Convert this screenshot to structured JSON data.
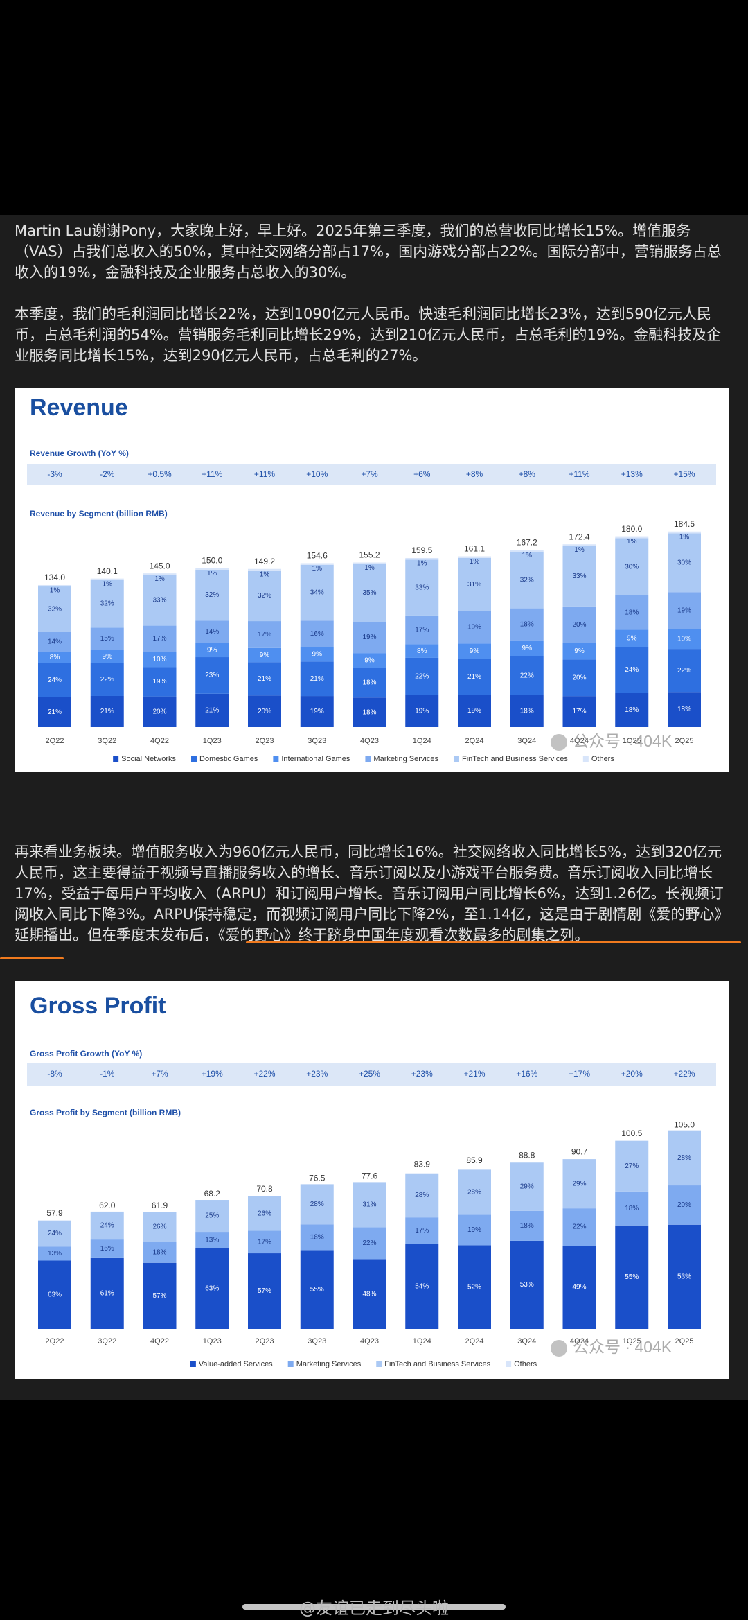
{
  "intro": [
    "Martin Lau谢谢Pony，大家晚上好，早上好。2025年第三季度，我们的总营收同比增长15%。增值服务（VAS）占我们总收入的50%，其中社交网络分部占17%，国内游戏分部占22%。国际分部中，营销服务占总收入的19%，金融科技及企业服务占总收入的30%。",
    "本季度，我们的毛利润同比增长22%，达到1090亿元人民币。快速毛利润同比增长23%，达到590亿元人民币，占总毛利润的54%。营销服务毛利同比增长29%，达到210亿元人民币，占总毛利的19%。金融科技及企业服务同比增长15%，达到290亿元人民币，占总毛利的27%。"
  ],
  "chart_data": [
    {
      "type": "bar",
      "stacked": true,
      "title": "Revenue",
      "growth_label": "Revenue Growth (YoY %)",
      "growth": [
        "-3%",
        "-2%",
        "+0.5%",
        "+11%",
        "+11%",
        "+10%",
        "+7%",
        "+6%",
        "+8%",
        "+8%",
        "+11%",
        "+13%",
        "+15%"
      ],
      "subtitle": "Revenue by Segment (billion RMB)",
      "categories": [
        "2Q22",
        "3Q22",
        "4Q22",
        "1Q23",
        "2Q23",
        "3Q23",
        "4Q23",
        "1Q24",
        "2Q24",
        "3Q24",
        "4Q24",
        "1Q25",
        "2Q25"
      ],
      "totals": {
        "values": [
          134.0,
          140.1,
          145.0,
          150.0,
          149.2,
          154.6,
          155.2,
          159.5,
          161.1,
          167.2,
          172.4,
          180.0,
          184.5
        ],
        "value_labels": [
          "134.0",
          "140.1",
          "145.0",
          "150.0",
          "149.2",
          "154.6",
          "155.2",
          "159.5",
          "161.1",
          "167.2",
          "172.4",
          "180.0",
          "184.5"
        ]
      },
      "series": [
        {
          "name": "Social Networks",
          "color": "#1a4fc9",
          "values": [
            21,
            21,
            20,
            21,
            20,
            19,
            18,
            19,
            19,
            18,
            17,
            18,
            18
          ],
          "value_labels": [
            "21%",
            "21%",
            "20%",
            "21%",
            "20%",
            "19%",
            "18%",
            "19%",
            "19%",
            "18%",
            "17%",
            "18%",
            "18%"
          ]
        },
        {
          "name": "Domestic Games",
          "color": "#2e6fe0",
          "values": [
            24,
            22,
            19,
            23,
            21,
            21,
            18,
            22,
            21,
            22,
            20,
            24,
            22
          ],
          "value_labels": [
            "24%",
            "22%",
            "19%",
            "23%",
            "21%",
            "21%",
            "18%",
            "22%",
            "21%",
            "22%",
            "20%",
            "24%",
            "22%"
          ]
        },
        {
          "name": "International Games",
          "color": "#4f8ff0",
          "values": [
            8,
            9,
            10,
            9,
            9,
            9,
            9,
            8,
            9,
            9,
            9,
            9,
            10
          ],
          "value_labels": [
            "8%",
            "9%",
            "10%",
            "9%",
            "9%",
            "9%",
            "9%",
            "8%",
            "9%",
            "9%",
            "9%",
            "9%",
            "10%"
          ]
        },
        {
          "name": "Marketing Services",
          "color": "#7eaaf0",
          "values": [
            14,
            15,
            17,
            14,
            17,
            16,
            19,
            17,
            19,
            18,
            20,
            18,
            19
          ],
          "value_labels": [
            "14%",
            "15%",
            "17%",
            "14%",
            "17%",
            "16%",
            "19%",
            "17%",
            "19%",
            "18%",
            "20%",
            "18%",
            "19%"
          ]
        },
        {
          "name": "FinTech and Business Services",
          "color": "#abc9f4",
          "values": [
            32,
            32,
            33,
            32,
            32,
            34,
            35,
            33,
            31,
            32,
            33,
            30,
            30
          ],
          "value_labels": [
            "32%",
            "32%",
            "33%",
            "32%",
            "32%",
            "34%",
            "35%",
            "33%",
            "31%",
            "32%",
            "33%",
            "30%",
            "30%"
          ]
        },
        {
          "name": "Others",
          "color": "#d8e5fa",
          "values": [
            1,
            1,
            1,
            1,
            1,
            1,
            1,
            1,
            1,
            1,
            1,
            1,
            1
          ],
          "value_labels": [
            "1%",
            "1%",
            "1%",
            "1%",
            "1%",
            "1%",
            "1%",
            "1%",
            "1%",
            "1%",
            "1%",
            "1%",
            "1%"
          ]
        }
      ],
      "watermark": "公众号 · 404K"
    },
    {
      "type": "bar",
      "stacked": true,
      "title": "Gross Profit",
      "growth_label": "Gross Profit Growth (YoY %)",
      "growth": [
        "-8%",
        "-1%",
        "+7%",
        "+19%",
        "+22%",
        "+23%",
        "+25%",
        "+23%",
        "+21%",
        "+16%",
        "+17%",
        "+20%",
        "+22%"
      ],
      "subtitle": "Gross Profit by Segment (billion RMB)",
      "categories": [
        "2Q22",
        "3Q22",
        "4Q22",
        "1Q23",
        "2Q23",
        "3Q23",
        "4Q23",
        "1Q24",
        "2Q24",
        "3Q24",
        "4Q24",
        "1Q25",
        "2Q25"
      ],
      "totals": {
        "values": [
          57.9,
          62.0,
          61.9,
          68.2,
          70.8,
          76.5,
          77.6,
          83.9,
          85.9,
          88.8,
          90.7,
          100.5,
          105.0
        ],
        "value_labels": [
          "57.9",
          "62.0",
          "61.9",
          "68.2",
          "70.8",
          "76.5",
          "77.6",
          "83.9",
          "85.9",
          "88.8",
          "90.7",
          "100.5",
          "105.0"
        ]
      },
      "series": [
        {
          "name": "Value-added Services",
          "color": "#1a4fc9",
          "values": [
            63,
            61,
            57,
            63,
            57,
            55,
            48,
            54,
            52,
            53,
            49,
            55,
            53
          ],
          "value_labels": [
            "63%",
            "61%",
            "57%",
            "63%",
            "57%",
            "55%",
            "48%",
            "54%",
            "52%",
            "53%",
            "49%",
            "55%",
            "53%"
          ]
        },
        {
          "name": "Marketing Services",
          "color": "#7eaaf0",
          "values": [
            13,
            16,
            18,
            13,
            17,
            18,
            22,
            17,
            19,
            18,
            22,
            18,
            20
          ],
          "value_labels": [
            "13%",
            "16%",
            "18%",
            "13%",
            "17%",
            "18%",
            "22%",
            "17%",
            "19%",
            "18%",
            "22%",
            "18%",
            "20%"
          ]
        },
        {
          "name": "FinTech and Business Services",
          "color": "#abc9f4",
          "values": [
            24,
            24,
            26,
            25,
            26,
            28,
            31,
            28,
            28,
            29,
            29,
            27,
            28
          ],
          "value_labels": [
            "24%",
            "24%",
            "26%",
            "25%",
            "26%",
            "28%",
            "31%",
            "28%",
            "28%",
            "29%",
            "29%",
            "27%",
            "28%"
          ]
        },
        {
          "name": "Others",
          "color": "#d8e5fa",
          "values": [
            null,
            null,
            null,
            null,
            null,
            null,
            null,
            null,
            null,
            null,
            null,
            null,
            null
          ]
        }
      ],
      "watermark": "公众号 · 404K"
    }
  ],
  "body": "再来看业务板块。增值服务收入为960亿元人民币，同比增长16%。社交网络收入同比增长5%，达到320亿元人民币，这主要得益于视频号直播服务收入的增长、音乐订阅以及小游戏平台服务费。音乐订阅收入同比增长17%，受益于每用户平均收入（ARPU）和订阅用户增长。音乐订阅用户同比增长6%，达到1.26亿。长视频订阅收入同比下降3%。ARPU保持稳定，而视频订阅用户同比下降2%，至1.14亿，这是由于剧情剧《爱的野心》延期播出。但在季度末发布后，《爱的野心》终于跻身中国年度观看次数最多的剧集之列。",
  "footer": "@友谊已走到尽头啦"
}
